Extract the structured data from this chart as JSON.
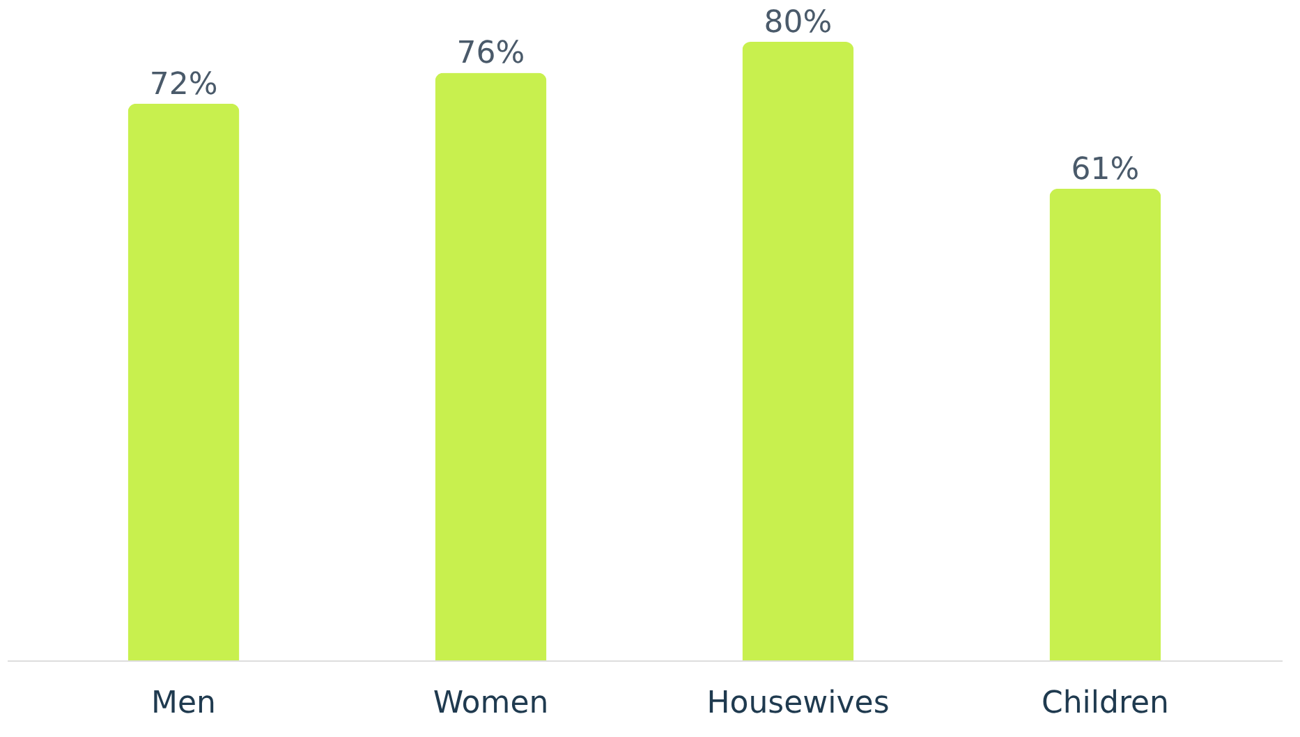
{
  "chart_data": {
    "type": "bar",
    "categories": [
      "Men",
      "Women",
      "Housewives",
      "Children"
    ],
    "values": [
      72,
      76,
      80,
      61
    ],
    "value_labels": [
      "72%",
      "76%",
      "80%",
      "61%"
    ],
    "color": "#c8f04e"
  }
}
